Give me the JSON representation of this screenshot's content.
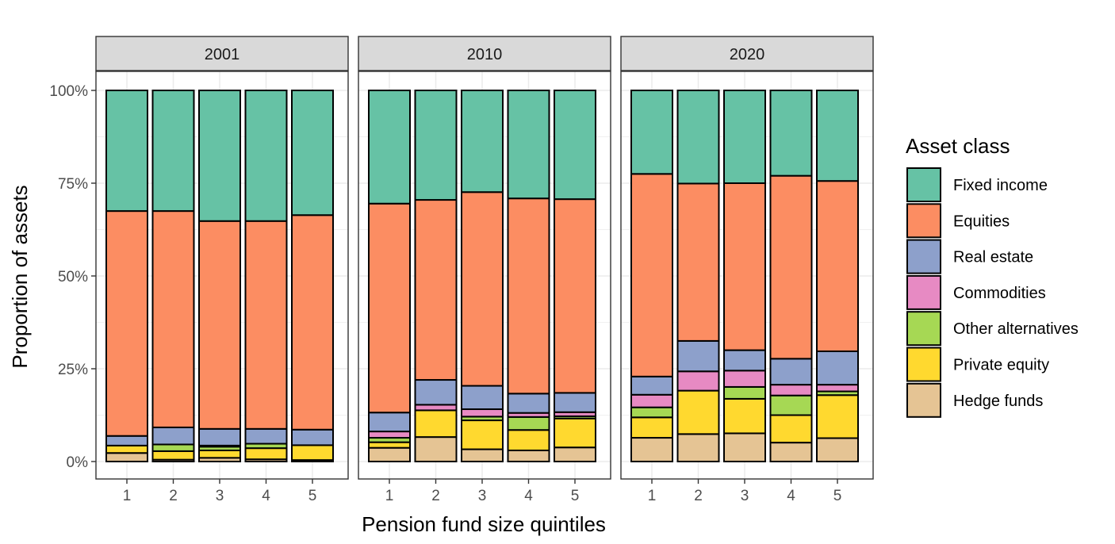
{
  "chart_data": {
    "type": "bar",
    "stacked": true,
    "facet_by": "year",
    "xlabel": "Pension fund size quintiles",
    "ylabel": "Proportion of assets",
    "ylim": [
      0,
      1
    ],
    "yticks": [
      "0%",
      "25%",
      "50%",
      "75%",
      "100%"
    ],
    "categories": [
      "1",
      "2",
      "3",
      "4",
      "5"
    ],
    "legend": {
      "title": "Asset class",
      "position": "right"
    },
    "series_meta": [
      {
        "name": "Fixed income",
        "color": "#66c2a5"
      },
      {
        "name": "Equities",
        "color": "#fc8d62"
      },
      {
        "name": "Real estate",
        "color": "#8da0cb"
      },
      {
        "name": "Commodities",
        "color": "#e78ac3"
      },
      {
        "name": "Other alternatives",
        "color": "#a6d854"
      },
      {
        "name": "Private equity",
        "color": "#ffd92f"
      },
      {
        "name": "Hedge funds",
        "color": "#e5c494"
      }
    ],
    "stack_order_bottom_to_top": [
      "Hedge funds",
      "Private equity",
      "Other alternatives",
      "Commodities",
      "Real estate",
      "Equities",
      "Fixed income"
    ],
    "panels": [
      {
        "label": "2001",
        "series": [
          {
            "name": "Hedge funds",
            "values": [
              0.023,
              0.005,
              0.01,
              0.006,
              0.004
            ]
          },
          {
            "name": "Private equity",
            "values": [
              0.02,
              0.023,
              0.02,
              0.03,
              0.04
            ]
          },
          {
            "name": "Other alternatives",
            "values": [
              0.0,
              0.018,
              0.01,
              0.012,
              0.0
            ]
          },
          {
            "name": "Commodities",
            "values": [
              0.0,
              0.0,
              0.003,
              0.0,
              0.0
            ]
          },
          {
            "name": "Real estate",
            "values": [
              0.026,
              0.046,
              0.045,
              0.04,
              0.042
            ]
          },
          {
            "name": "Equities",
            "values": [
              0.606,
              0.583,
              0.56,
              0.56,
              0.578
            ]
          },
          {
            "name": "Fixed income",
            "values": [
              0.325,
              0.325,
              0.352,
              0.352,
              0.336
            ]
          }
        ]
      },
      {
        "label": "2010",
        "series": [
          {
            "name": "Hedge funds",
            "values": [
              0.037,
              0.066,
              0.033,
              0.03,
              0.038
            ]
          },
          {
            "name": "Private equity",
            "values": [
              0.015,
              0.072,
              0.078,
              0.055,
              0.078
            ]
          },
          {
            "name": "Other alternatives",
            "values": [
              0.012,
              0.0,
              0.01,
              0.035,
              0.006
            ]
          },
          {
            "name": "Commodities",
            "values": [
              0.017,
              0.015,
              0.02,
              0.011,
              0.011
            ]
          },
          {
            "name": "Real estate",
            "values": [
              0.051,
              0.067,
              0.063,
              0.052,
              0.052
            ]
          },
          {
            "name": "Equities",
            "values": [
              0.563,
              0.485,
              0.522,
              0.526,
              0.522
            ]
          },
          {
            "name": "Fixed income",
            "values": [
              0.305,
              0.295,
              0.274,
              0.291,
              0.293
            ]
          }
        ]
      },
      {
        "label": "2020",
        "series": [
          {
            "name": "Hedge funds",
            "values": [
              0.064,
              0.074,
              0.076,
              0.051,
              0.063
            ]
          },
          {
            "name": "Private equity",
            "values": [
              0.055,
              0.117,
              0.093,
              0.074,
              0.116
            ]
          },
          {
            "name": "Other alternatives",
            "values": [
              0.027,
              0.0,
              0.032,
              0.053,
              0.01
            ]
          },
          {
            "name": "Commodities",
            "values": [
              0.034,
              0.052,
              0.044,
              0.029,
              0.018
            ]
          },
          {
            "name": "Real estate",
            "values": [
              0.049,
              0.082,
              0.055,
              0.07,
              0.09
            ]
          },
          {
            "name": "Equities",
            "values": [
              0.546,
              0.424,
              0.45,
              0.493,
              0.459
            ]
          },
          {
            "name": "Fixed income",
            "values": [
              0.225,
              0.251,
              0.25,
              0.23,
              0.244
            ]
          }
        ]
      }
    ]
  }
}
